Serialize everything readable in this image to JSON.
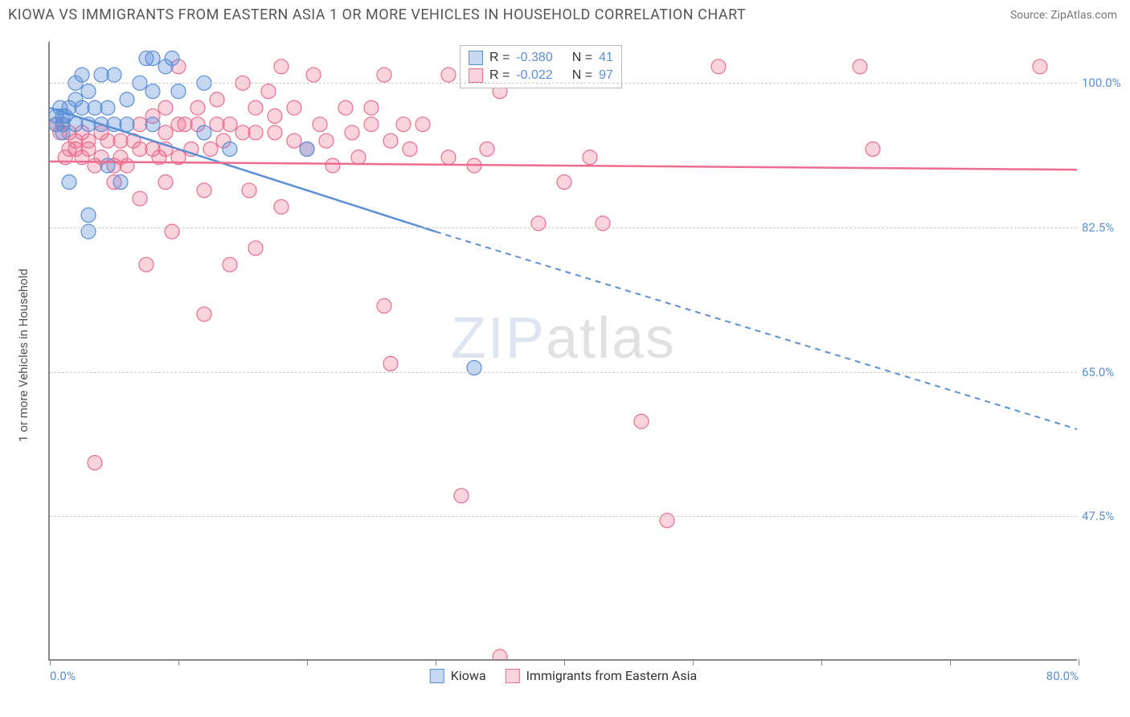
{
  "header": {
    "title": "KIOWA VS IMMIGRANTS FROM EASTERN ASIA 1 OR MORE VEHICLES IN HOUSEHOLD CORRELATION CHART",
    "source": "Source: ZipAtlas.com"
  },
  "chart": {
    "type": "scatter",
    "y_axis_label": "1 or more Vehicles in Household",
    "xlim": [
      0,
      80
    ],
    "ylim": [
      30,
      105
    ],
    "x_ticks": [
      0,
      10,
      20,
      30,
      40,
      50,
      60,
      70,
      80
    ],
    "x_tick_labels": {
      "0": "0.0%",
      "80": "80.0%"
    },
    "y_gridlines": [
      47.5,
      65.0,
      82.5,
      100.0
    ],
    "y_tick_labels": [
      "47.5%",
      "65.0%",
      "82.5%",
      "100.0%"
    ],
    "grid_color": "#cccccc",
    "axis_color": "#888888",
    "background_color": "#ffffff",
    "tick_label_color": "#5b8fd6",
    "marker_radius": 9,
    "marker_opacity": 0.35,
    "series": [
      {
        "name": "Kiowa",
        "color": "#5b8fd6",
        "fill": "rgba(91,143,214,0.35)",
        "stroke": "#5b8fd6",
        "r_value": "-0.380",
        "n_value": "41",
        "regression": {
          "x1": 0,
          "y1": 97,
          "x2_solid": 30,
          "y2_solid": 82,
          "x2": 80,
          "y2": 58,
          "width": 2.5
        },
        "points": [
          [
            0.5,
            96
          ],
          [
            0.5,
            95
          ],
          [
            0.8,
            97
          ],
          [
            1,
            96
          ],
          [
            1,
            95
          ],
          [
            1,
            94
          ],
          [
            1.2,
            96
          ],
          [
            1.5,
            97
          ],
          [
            1.5,
            88
          ],
          [
            2,
            95
          ],
          [
            2,
            98
          ],
          [
            2,
            100
          ],
          [
            2.5,
            97
          ],
          [
            2.5,
            101
          ],
          [
            3,
            99
          ],
          [
            3,
            95
          ],
          [
            3,
            84
          ],
          [
            3,
            82
          ],
          [
            3.5,
            97
          ],
          [
            4,
            95
          ],
          [
            4,
            101
          ],
          [
            4.5,
            97
          ],
          [
            4.5,
            90
          ],
          [
            5,
            95
          ],
          [
            5,
            101
          ],
          [
            5.5,
            88
          ],
          [
            6,
            95
          ],
          [
            6,
            98
          ],
          [
            7,
            100
          ],
          [
            7.5,
            103
          ],
          [
            8,
            99
          ],
          [
            8,
            95
          ],
          [
            8,
            103
          ],
          [
            9,
            102
          ],
          [
            9.5,
            103
          ],
          [
            10,
            99
          ],
          [
            12,
            100
          ],
          [
            12,
            94
          ],
          [
            14,
            92
          ],
          [
            20,
            92
          ],
          [
            33,
            65.5
          ]
        ]
      },
      {
        "name": "Immigrants from Eastern Asia",
        "color": "#ec6d8f",
        "fill": "rgba(236,109,143,0.30)",
        "stroke": "#ec6d8f",
        "r_value": "-0.022",
        "n_value": "97",
        "regression": {
          "x1": 0,
          "y1": 90.5,
          "x2_solid": 80,
          "y2_solid": 89.5,
          "x2": 80,
          "y2": 89.5,
          "width": 2.5
        },
        "points": [
          [
            0.5,
            95
          ],
          [
            0.8,
            94
          ],
          [
            1,
            95
          ],
          [
            1.2,
            91
          ],
          [
            1.5,
            92
          ],
          [
            1.5,
            94
          ],
          [
            2,
            92
          ],
          [
            2,
            93
          ],
          [
            2.5,
            94
          ],
          [
            2.5,
            91
          ],
          [
            3,
            93
          ],
          [
            3,
            92
          ],
          [
            3.5,
            90
          ],
          [
            3.5,
            54
          ],
          [
            4,
            94
          ],
          [
            4,
            91
          ],
          [
            4.5,
            93
          ],
          [
            5,
            90
          ],
          [
            5,
            88
          ],
          [
            5.5,
            93
          ],
          [
            5.5,
            91
          ],
          [
            6,
            90
          ],
          [
            6.5,
            93
          ],
          [
            7,
            92
          ],
          [
            7,
            95
          ],
          [
            7,
            86
          ],
          [
            7.5,
            78
          ],
          [
            8,
            92
          ],
          [
            8,
            96
          ],
          [
            8.5,
            91
          ],
          [
            9,
            94
          ],
          [
            9,
            92
          ],
          [
            9,
            88
          ],
          [
            9,
            97
          ],
          [
            9.5,
            82
          ],
          [
            10,
            91
          ],
          [
            10,
            95
          ],
          [
            10,
            102
          ],
          [
            10.5,
            95
          ],
          [
            11,
            92
          ],
          [
            11.5,
            95
          ],
          [
            11.5,
            97
          ],
          [
            12,
            87
          ],
          [
            12,
            72
          ],
          [
            12.5,
            92
          ],
          [
            13,
            95
          ],
          [
            13,
            98
          ],
          [
            13.5,
            93
          ],
          [
            14,
            95
          ],
          [
            14,
            78
          ],
          [
            15,
            100
          ],
          [
            15,
            94
          ],
          [
            15.5,
            87
          ],
          [
            16,
            94
          ],
          [
            16,
            97
          ],
          [
            16,
            80
          ],
          [
            17,
            99
          ],
          [
            17.5,
            94
          ],
          [
            17.5,
            96
          ],
          [
            18,
            102
          ],
          [
            18,
            85
          ],
          [
            19,
            93
          ],
          [
            19,
            97
          ],
          [
            20,
            92
          ],
          [
            20.5,
            101
          ],
          [
            21,
            95
          ],
          [
            21.5,
            93
          ],
          [
            22,
            90
          ],
          [
            23,
            97
          ],
          [
            23.5,
            94
          ],
          [
            24,
            91
          ],
          [
            25,
            95
          ],
          [
            25,
            97
          ],
          [
            26,
            101
          ],
          [
            26,
            73
          ],
          [
            26.5,
            93
          ],
          [
            26.5,
            66
          ],
          [
            27.5,
            95
          ],
          [
            28,
            92
          ],
          [
            29,
            95
          ],
          [
            31,
            91
          ],
          [
            31,
            101
          ],
          [
            32,
            50
          ],
          [
            33,
            90
          ],
          [
            34,
            92
          ],
          [
            35,
            99
          ],
          [
            35,
            30.5
          ],
          [
            38,
            83
          ],
          [
            40,
            88
          ],
          [
            42,
            91
          ],
          [
            43,
            83
          ],
          [
            46,
            59
          ],
          [
            48,
            47
          ],
          [
            52,
            102
          ],
          [
            63,
            102
          ],
          [
            64,
            92
          ],
          [
            77,
            102
          ]
        ]
      }
    ],
    "stats_box": {
      "border_color": "#bbbbbb",
      "r_label": "R =",
      "n_label": "N ="
    },
    "legend": {
      "items": [
        "Kiowa",
        "Immigrants from Eastern Asia"
      ]
    },
    "watermark": {
      "zip": "ZIP",
      "atlas": "atlas"
    }
  }
}
